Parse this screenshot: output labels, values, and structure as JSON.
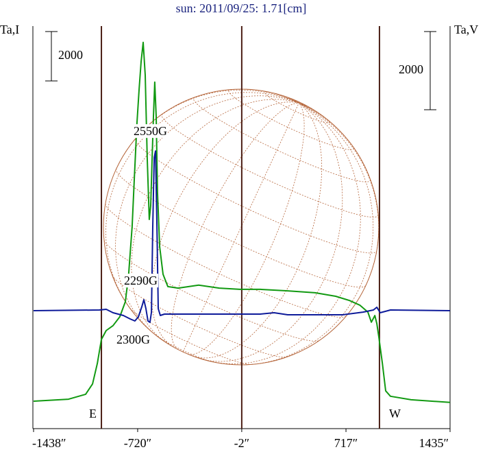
{
  "chart_data": {
    "type": "line",
    "title": "sun: 2011/09/25: 1.71[cm]",
    "y_label": "Ta,I",
    "y2_label": "Ta,V",
    "xlim": [
      -1438,
      1435
    ],
    "xticks": [
      {
        "value": -1438,
        "label": "-1438″"
      },
      {
        "value": -720,
        "label": "-720″"
      },
      {
        "value": -2,
        "label": "-2″"
      },
      {
        "value": 717,
        "label": "717″"
      },
      {
        "value": 1435,
        "label": "1435″"
      }
    ],
    "ylim": [
      -1000,
      15300
    ],
    "y2lim": [
      -3000,
      7300
    ],
    "scale_bars": [
      {
        "value": 2000,
        "axis": "y"
      },
      {
        "value": 2000,
        "axis": "y2"
      }
    ],
    "limbs": [
      {
        "value": -970,
        "label": "E"
      },
      {
        "value": 948,
        "label": "W"
      }
    ],
    "limb_color": "#4a1e14",
    "annotations": [
      "2550G",
      "2290G",
      "2300G"
    ],
    "series": [
      {
        "name": "I",
        "color": "#119911",
        "axis": "y",
        "x": [
          -1438,
          -1197,
          -1079,
          -1031,
          -998,
          -970,
          -937,
          -890,
          -843,
          -805,
          -782,
          -758,
          -743,
          -725,
          -710,
          -696,
          -682,
          -668,
          -654,
          -640,
          -630,
          -620,
          -611,
          -602,
          -592,
          -583,
          -568,
          -545,
          -512,
          -441,
          -299,
          -157,
          -15,
          126,
          315,
          504,
          646,
          740,
          812,
          868,
          892,
          916,
          930,
          944,
          968,
          991,
          1024,
          1166,
          1435
        ],
        "values": [
          110,
          190,
          390,
          810,
          1640,
          2610,
          2970,
          3170,
          3530,
          4140,
          5250,
          7190,
          9140,
          11360,
          12750,
          13860,
          14640,
          13310,
          9970,
          7470,
          8030,
          9970,
          11640,
          13030,
          11640,
          8580,
          6360,
          5250,
          4750,
          4690,
          4810,
          4690,
          4640,
          4640,
          4580,
          4500,
          4360,
          4190,
          4000,
          3720,
          3310,
          3580,
          3250,
          2690,
          1640,
          530,
          310,
          170,
          60
        ]
      },
      {
        "name": "V",
        "color": "#0d1a99",
        "axis": "y2",
        "x": [
          -1438,
          -984,
          -937,
          -890,
          -819,
          -772,
          -739,
          -715,
          -691,
          -677,
          -663,
          -649,
          -635,
          -625,
          -616,
          -606,
          -597,
          -587,
          -578,
          -564,
          -535,
          -441,
          -252,
          126,
          221,
          315,
          693,
          835,
          906,
          930,
          953,
          1024,
          1435
        ],
        "values": [
          18,
          35,
          53,
          -35,
          -105,
          -193,
          -246,
          -140,
          123,
          298,
          70,
          -246,
          -281,
          -18,
          2175,
          3930,
          4105,
          2175,
          70,
          -105,
          -70,
          -70,
          -70,
          -70,
          -35,
          -88,
          -88,
          -18,
          35,
          105,
          -35,
          35,
          18
        ]
      }
    ]
  }
}
